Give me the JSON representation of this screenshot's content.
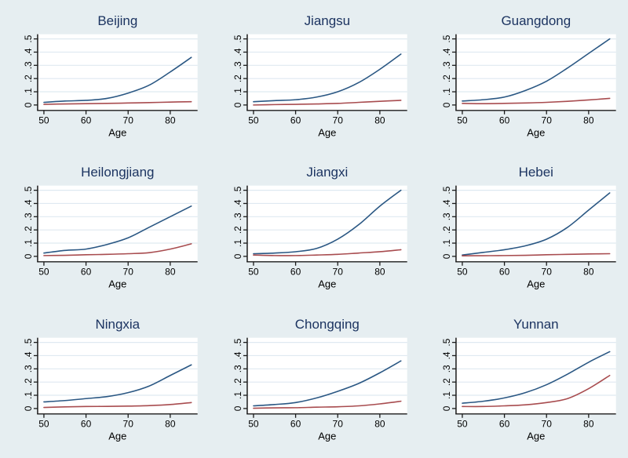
{
  "figure": {
    "xlabel": "Age",
    "xticks": [
      50,
      60,
      70,
      80
    ],
    "yticks": [
      0,
      0.1,
      0.2,
      0.3,
      0.4,
      0.5
    ],
    "yticklabels": [
      "0",
      ".1",
      ".2",
      ".3",
      ".4",
      ".5"
    ],
    "xlim": [
      50,
      85
    ],
    "ylim": [
      0,
      0.5
    ],
    "grid": "horizontal",
    "legend": "none",
    "colors": {
      "background": "#e6eef1",
      "plot_background": "#ffffff",
      "gridline": "#dfe9f1",
      "axis": "#1a1a1a",
      "title": "#1c3461",
      "navy_line": "#2a5783",
      "maroon_line": "#a84c4f"
    }
  },
  "chart_data": [
    {
      "type": "line",
      "title": "Beijing",
      "xlabel": "Age",
      "x": [
        50,
        55,
        60,
        65,
        70,
        75,
        80,
        85
      ],
      "series": [
        {
          "name": "navy",
          "values": [
            0.02,
            0.03,
            0.035,
            0.05,
            0.09,
            0.15,
            0.25,
            0.36
          ]
        },
        {
          "name": "maroon",
          "values": [
            0.005,
            0.008,
            0.01,
            0.012,
            0.015,
            0.018,
            0.022,
            0.025
          ]
        }
      ]
    },
    {
      "type": "line",
      "title": "Jiangsu",
      "xlabel": "Age",
      "x": [
        50,
        55,
        60,
        65,
        70,
        75,
        80,
        85
      ],
      "series": [
        {
          "name": "navy",
          "values": [
            0.025,
            0.033,
            0.04,
            0.06,
            0.1,
            0.17,
            0.27,
            0.385
          ]
        },
        {
          "name": "maroon",
          "values": [
            0.0,
            0.003,
            0.005,
            0.008,
            0.012,
            0.02,
            0.028,
            0.035
          ]
        }
      ]
    },
    {
      "type": "line",
      "title": "Guangdong",
      "xlabel": "Age",
      "x": [
        50,
        55,
        60,
        65,
        70,
        75,
        80,
        85
      ],
      "series": [
        {
          "name": "navy",
          "values": [
            0.03,
            0.04,
            0.06,
            0.11,
            0.18,
            0.28,
            0.39,
            0.5
          ]
        },
        {
          "name": "maroon",
          "values": [
            0.012,
            0.01,
            0.012,
            0.015,
            0.02,
            0.028,
            0.038,
            0.05
          ]
        }
      ]
    },
    {
      "type": "line",
      "title": "Heilongjiang",
      "xlabel": "Age",
      "x": [
        50,
        55,
        60,
        65,
        70,
        75,
        80,
        85
      ],
      "series": [
        {
          "name": "navy",
          "values": [
            0.025,
            0.045,
            0.055,
            0.09,
            0.14,
            0.22,
            0.3,
            0.38
          ]
        },
        {
          "name": "maroon",
          "values": [
            0.006,
            0.008,
            0.012,
            0.015,
            0.02,
            0.028,
            0.055,
            0.095
          ]
        }
      ]
    },
    {
      "type": "line",
      "title": "Jiangxi",
      "xlabel": "Age",
      "x": [
        50,
        55,
        60,
        65,
        70,
        75,
        80,
        85
      ],
      "series": [
        {
          "name": "navy",
          "values": [
            0.02,
            0.025,
            0.035,
            0.06,
            0.13,
            0.24,
            0.38,
            0.5
          ]
        },
        {
          "name": "maroon",
          "values": [
            0.01,
            0.006,
            0.006,
            0.01,
            0.015,
            0.025,
            0.035,
            0.05
          ]
        }
      ]
    },
    {
      "type": "line",
      "title": "Hebei",
      "xlabel": "Age",
      "x": [
        50,
        55,
        60,
        65,
        70,
        75,
        80,
        85
      ],
      "series": [
        {
          "name": "navy",
          "values": [
            0.01,
            0.03,
            0.05,
            0.08,
            0.13,
            0.22,
            0.35,
            0.48
          ]
        },
        {
          "name": "maroon",
          "values": [
            0.004,
            0.005,
            0.006,
            0.008,
            0.012,
            0.015,
            0.018,
            0.02
          ]
        }
      ]
    },
    {
      "type": "line",
      "title": "Ningxia",
      "xlabel": "Age",
      "x": [
        50,
        55,
        60,
        65,
        70,
        75,
        80,
        85
      ],
      "series": [
        {
          "name": "navy",
          "values": [
            0.05,
            0.06,
            0.075,
            0.09,
            0.12,
            0.17,
            0.25,
            0.33
          ]
        },
        {
          "name": "maroon",
          "values": [
            0.008,
            0.012,
            0.015,
            0.016,
            0.018,
            0.022,
            0.03,
            0.045
          ]
        }
      ]
    },
    {
      "type": "line",
      "title": "Chongqing",
      "xlabel": "Age",
      "x": [
        50,
        55,
        60,
        65,
        70,
        75,
        80,
        85
      ],
      "series": [
        {
          "name": "navy",
          "values": [
            0.02,
            0.03,
            0.045,
            0.08,
            0.13,
            0.19,
            0.27,
            0.36
          ]
        },
        {
          "name": "maroon",
          "values": [
            0.002,
            0.005,
            0.006,
            0.01,
            0.013,
            0.02,
            0.035,
            0.055
          ]
        }
      ]
    },
    {
      "type": "line",
      "title": "Yunnan",
      "xlabel": "Age",
      "x": [
        50,
        55,
        60,
        65,
        70,
        75,
        80,
        85
      ],
      "series": [
        {
          "name": "navy",
          "values": [
            0.04,
            0.055,
            0.08,
            0.12,
            0.18,
            0.26,
            0.35,
            0.43
          ]
        },
        {
          "name": "maroon",
          "values": [
            0.015,
            0.015,
            0.02,
            0.028,
            0.045,
            0.075,
            0.15,
            0.25
          ]
        }
      ]
    }
  ]
}
